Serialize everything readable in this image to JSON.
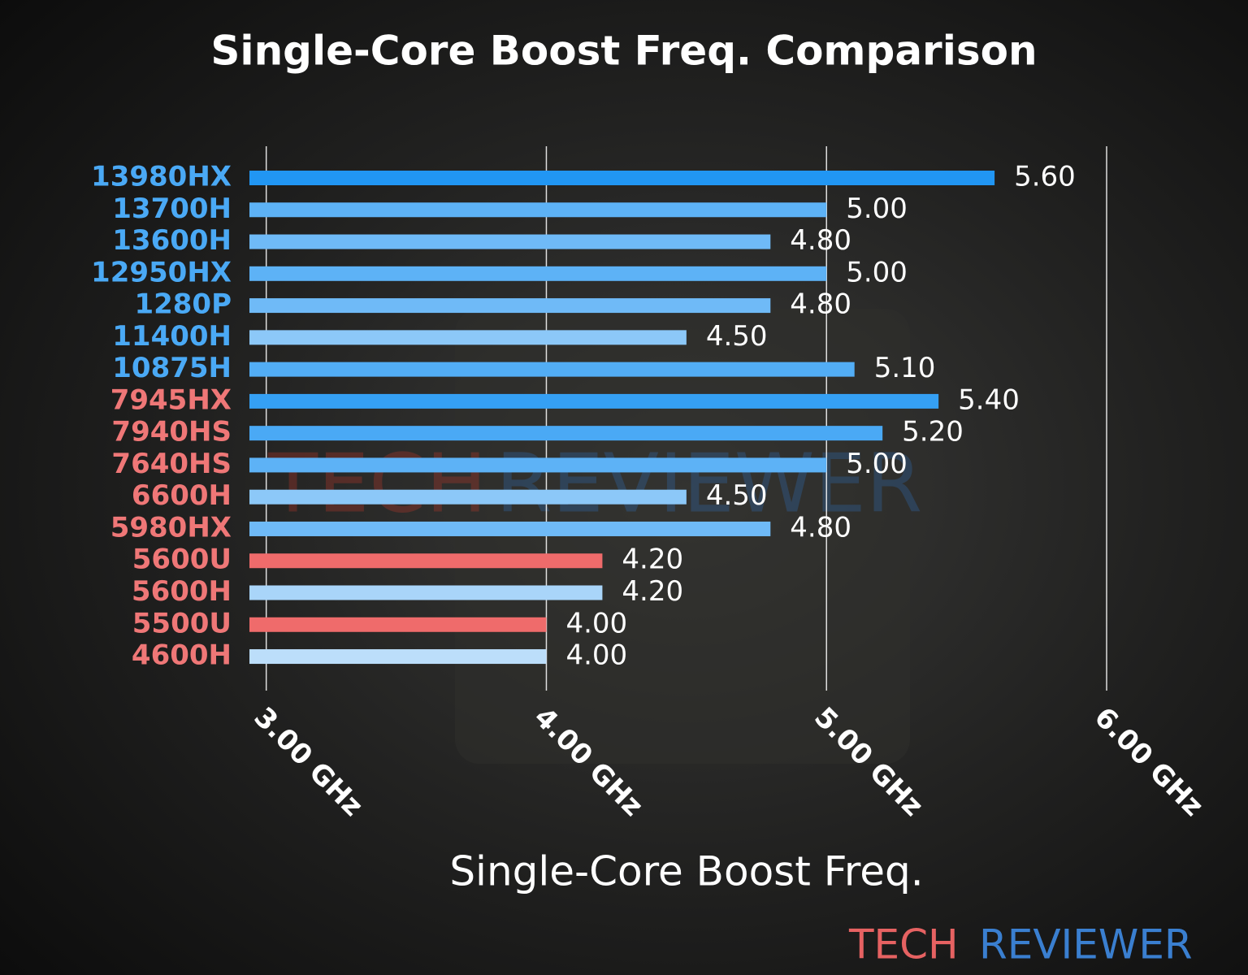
{
  "chart_data": {
    "type": "hbar",
    "title": "Single-Core Boost Freq. Comparison",
    "x_label": "Single-Core Boost Freq.",
    "categories": [
      "13980HX",
      "13700H",
      "13600H",
      "12950HX",
      "1280P",
      "11400H",
      "10875H",
      "7945HX",
      "7940HS",
      "7640HS",
      "6600H",
      "5980HX",
      "5600U",
      "5600H",
      "5500U",
      "4600H"
    ],
    "values": [
      5.6,
      5.0,
      4.8,
      5.0,
      4.8,
      4.5,
      5.1,
      5.4,
      5.2,
      5.0,
      4.5,
      4.8,
      4.2,
      4.2,
      4.0,
      4.0
    ],
    "value_labels": [
      "5.60",
      "5.00",
      "4.80",
      "5.00",
      "4.80",
      "4.50",
      "5.10",
      "5.40",
      "5.20",
      "5.00",
      "4.50",
      "4.80",
      "4.20",
      "4.20",
      "4.00",
      "4.00"
    ],
    "bar_colors": [
      "#2196f3",
      "#5db2f6",
      "#6fbaf7",
      "#5db2f6",
      "#6fbaf7",
      "#8cc8f8",
      "#52adf5",
      "#35a0f4",
      "#4aa9f5",
      "#5db2f6",
      "#8cc8f8",
      "#6fbaf7",
      "#ef6b6b",
      "#a9d5f9",
      "#ef6b6b",
      "#bcdefa"
    ],
    "label_colors": [
      "#4aa9f5",
      "#4aa9f5",
      "#4aa9f5",
      "#4aa9f5",
      "#4aa9f5",
      "#4aa9f5",
      "#4aa9f5",
      "#ef7777",
      "#ef7777",
      "#ef7777",
      "#ef7777",
      "#ef7777",
      "#ef7777",
      "#ef7777",
      "#ef7777",
      "#ef7777"
    ],
    "xlim": [
      2.94,
      6.0
    ],
    "xticks": [
      {
        "value": 3,
        "label": "3.00 GHz"
      },
      {
        "value": 4,
        "label": "4.00 GHz"
      },
      {
        "value": 5,
        "label": "5.00 GHz"
      },
      {
        "value": 6,
        "label": "6.00 GHz"
      }
    ],
    "grid": true,
    "annotations": [
      "TECH",
      "REVIEWER"
    ]
  }
}
